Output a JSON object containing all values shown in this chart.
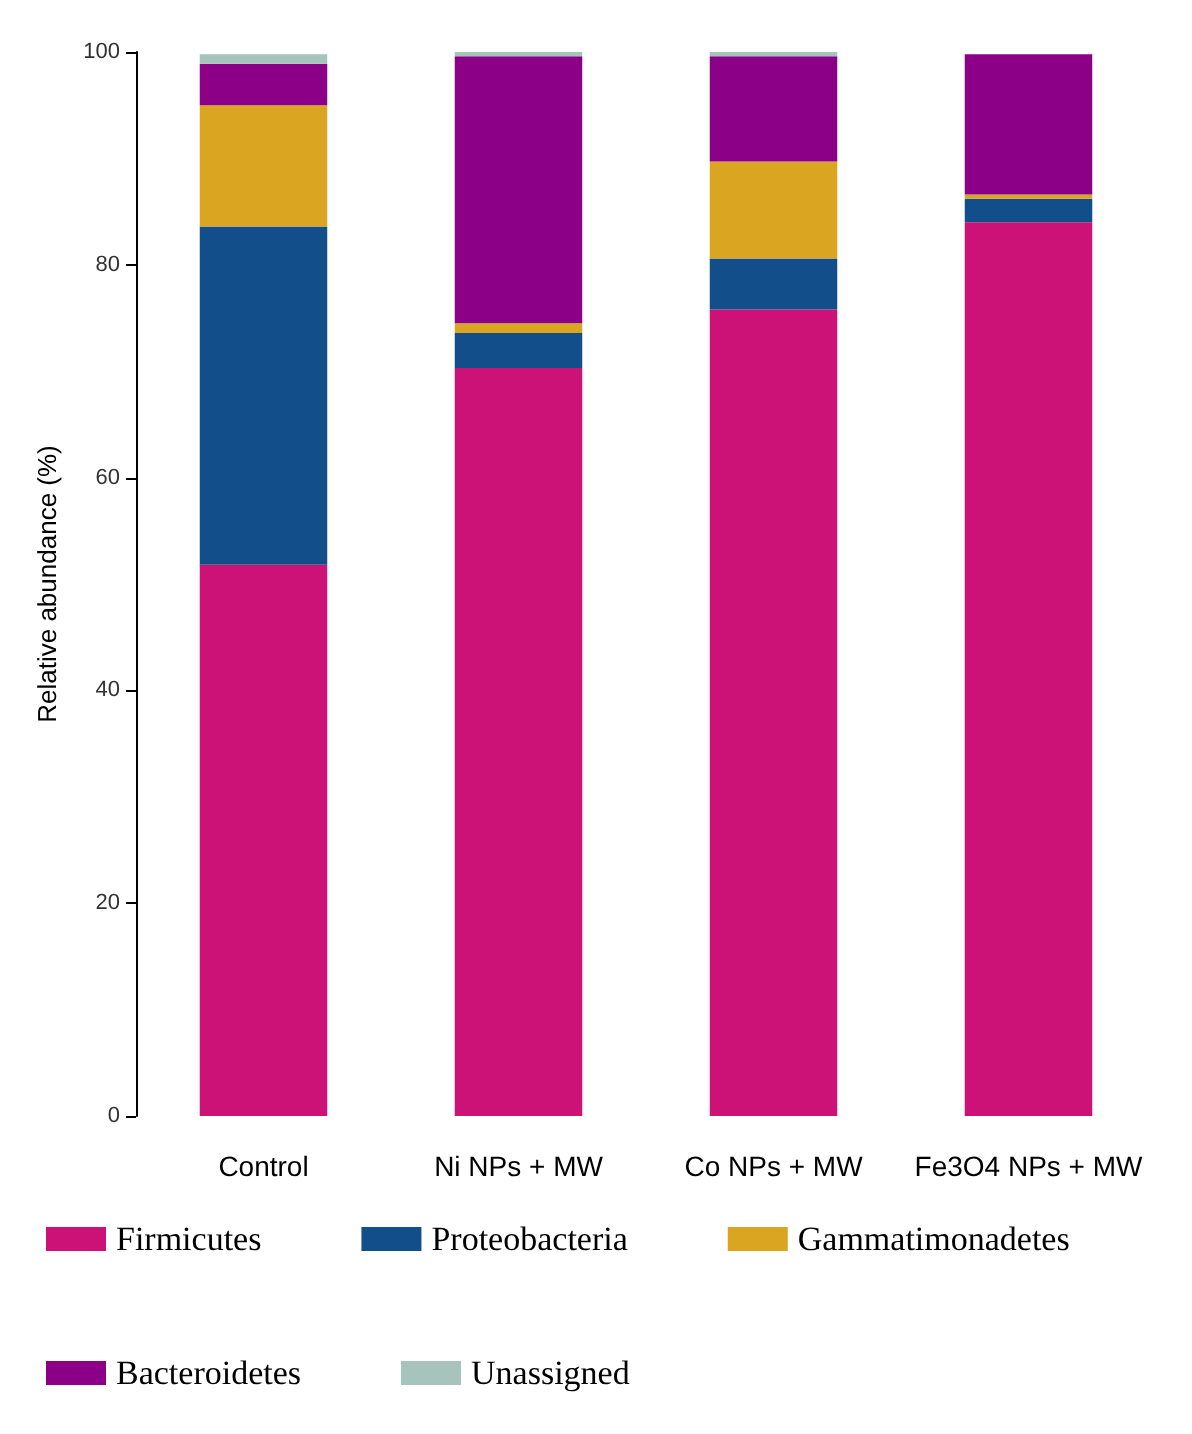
{
  "chart_data": {
    "type": "bar",
    "stacked": true,
    "ylabel": "Relative abundance (%)",
    "categories": [
      "Control",
      "Ni NPs + MW",
      "Co NPs + MW",
      "Fe3O4 NPs + MW"
    ],
    "series": [
      {
        "name": "Firmicutes",
        "color": "#cc1177",
        "values": [
          51.8,
          70.3,
          75.8,
          84.0
        ]
      },
      {
        "name": "Proteobacteria",
        "color": "#124f8a",
        "values": [
          31.8,
          3.3,
          4.8,
          2.2
        ]
      },
      {
        "name": "Gammatimonadetes",
        "color": "#daa520",
        "values": [
          11.4,
          0.9,
          9.1,
          0.4
        ]
      },
      {
        "name": "Bacteroidetes",
        "color": "#8b0087",
        "values": [
          3.9,
          25.1,
          9.9,
          13.2
        ]
      },
      {
        "name": "Unassigned",
        "color": "#a7c4bc",
        "values": [
          0.9,
          0.4,
          0.4,
          null
        ]
      }
    ],
    "ylim": [
      0,
      100
    ],
    "yticks": [
      0,
      20,
      40,
      60,
      80,
      100
    ],
    "grid": false,
    "legend": "bottom"
  }
}
